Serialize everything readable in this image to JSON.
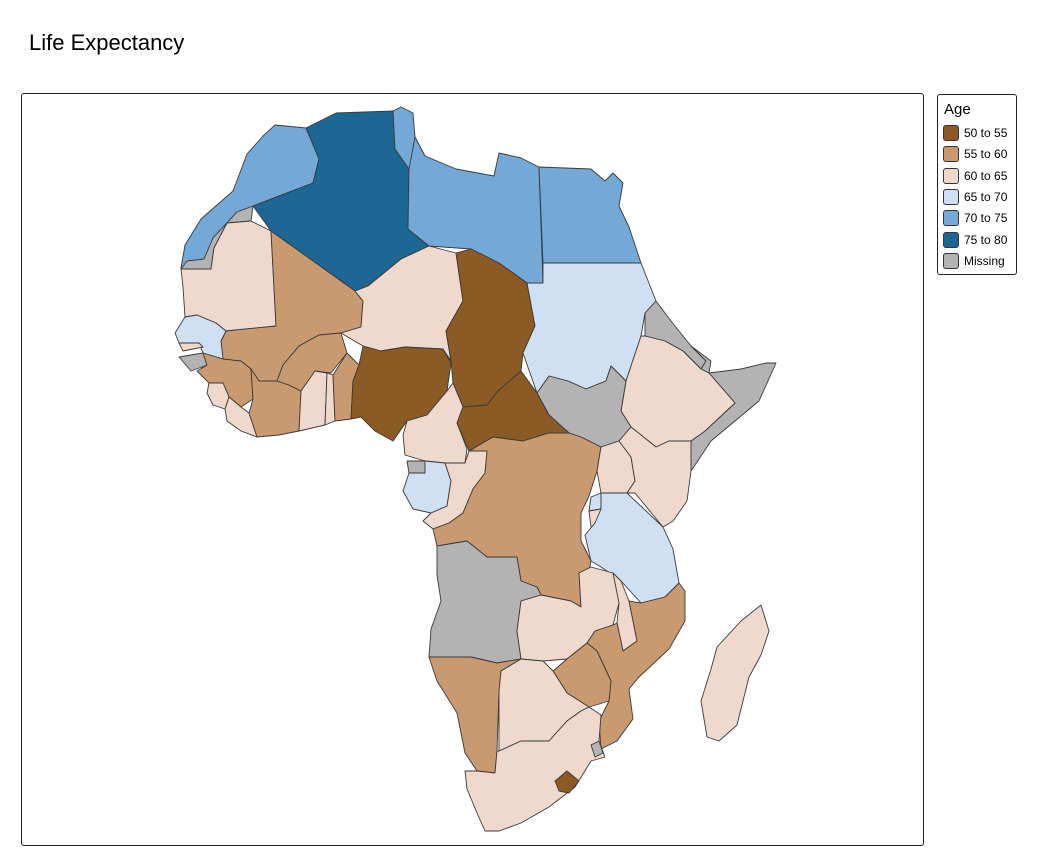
{
  "title": "Life Expectancy",
  "legend": {
    "title": "Age",
    "classes": [
      {
        "key": "c50",
        "label": "50 to 55",
        "color": "#8c5a24"
      },
      {
        "key": "c55",
        "label": "55 to 60",
        "color": "#c99a70"
      },
      {
        "key": "c60",
        "label": "60 to 65",
        "color": "#efd9cd"
      },
      {
        "key": "c65",
        "label": "65 to 70",
        "color": "#cfe0f3"
      },
      {
        "key": "c70",
        "label": "70 to 75",
        "color": "#74a8d6"
      },
      {
        "key": "c75",
        "label": "75 to 80",
        "color": "#1c6793"
      },
      {
        "key": "na",
        "label": "Missing",
        "color": "#b3b3b3"
      }
    ]
  },
  "countries": [
    {
      "name": "Morocco",
      "class": "c70"
    },
    {
      "name": "Western Sahara",
      "class": "na"
    },
    {
      "name": "Algeria",
      "class": "c75"
    },
    {
      "name": "Tunisia",
      "class": "c70"
    },
    {
      "name": "Libya",
      "class": "c70"
    },
    {
      "name": "Egypt",
      "class": "c70"
    },
    {
      "name": "Mauritania",
      "class": "c60"
    },
    {
      "name": "Mali",
      "class": "c55"
    },
    {
      "name": "Niger",
      "class": "c60"
    },
    {
      "name": "Chad",
      "class": "c50"
    },
    {
      "name": "Sudan",
      "class": "c65"
    },
    {
      "name": "Eritrea",
      "class": "na"
    },
    {
      "name": "Djibouti",
      "class": "na"
    },
    {
      "name": "Somalia",
      "class": "na"
    },
    {
      "name": "Ethiopia",
      "class": "c60"
    },
    {
      "name": "South Sudan",
      "class": "na"
    },
    {
      "name": "Senegal",
      "class": "c65"
    },
    {
      "name": "Gambia",
      "class": "c60"
    },
    {
      "name": "Guinea-Bissau",
      "class": "na"
    },
    {
      "name": "Guinea",
      "class": "c55"
    },
    {
      "name": "Sierra Leone",
      "class": "c60"
    },
    {
      "name": "Liberia",
      "class": "c60"
    },
    {
      "name": "Côte d'Ivoire",
      "class": "c55"
    },
    {
      "name": "Burkina Faso",
      "class": "c55"
    },
    {
      "name": "Ghana",
      "class": "c60"
    },
    {
      "name": "Togo",
      "class": "c60"
    },
    {
      "name": "Benin",
      "class": "c55"
    },
    {
      "name": "Nigeria",
      "class": "c50"
    },
    {
      "name": "Cameroon",
      "class": "c60"
    },
    {
      "name": "Central African Republic",
      "class": "c50"
    },
    {
      "name": "Equatorial Guinea",
      "class": "na"
    },
    {
      "name": "Gabon",
      "class": "c65"
    },
    {
      "name": "Republic of the Congo",
      "class": "c60"
    },
    {
      "name": "DR Congo",
      "class": "c55"
    },
    {
      "name": "Uganda",
      "class": "c60"
    },
    {
      "name": "Kenya",
      "class": "c60"
    },
    {
      "name": "Rwanda",
      "class": "c65"
    },
    {
      "name": "Burundi",
      "class": "c60"
    },
    {
      "name": "Tanzania",
      "class": "c65"
    },
    {
      "name": "Angola",
      "class": "na"
    },
    {
      "name": "Zambia",
      "class": "c60"
    },
    {
      "name": "Malawi",
      "class": "c60"
    },
    {
      "name": "Mozambique",
      "class": "c55"
    },
    {
      "name": "Zimbabwe",
      "class": "c55"
    },
    {
      "name": "Namibia",
      "class": "c55"
    },
    {
      "name": "Botswana",
      "class": "c60"
    },
    {
      "name": "South Africa",
      "class": "c60"
    },
    {
      "name": "Lesotho",
      "class": "c50"
    },
    {
      "name": "Eswatini",
      "class": "na"
    },
    {
      "name": "Madagascar",
      "class": "c60"
    }
  ]
}
